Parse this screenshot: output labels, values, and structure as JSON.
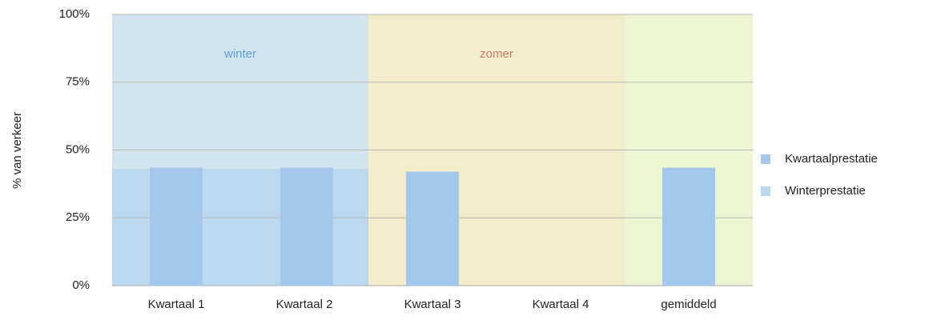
{
  "chart_data": {
    "type": "bar",
    "y_label": "% van verkeer",
    "categories": [
      "Kwartaal 1",
      "Kwartaal 2",
      "Kwartaal 3",
      "Kwartaal 4",
      "gemiddeld"
    ],
    "series": [
      {
        "name": "Kwartaalprestatie",
        "color": "#a3c8ec",
        "values": [
          43.5,
          43.5,
          42,
          null,
          43.5
        ]
      },
      {
        "name": "Winterprestatie",
        "color": "#bcd8ee",
        "values": [
          43,
          43,
          null,
          null,
          null
        ]
      }
    ],
    "regions": [
      {
        "label": "winter",
        "from": 0,
        "to": 1,
        "color": "#d3e4ee",
        "label_color": "#5aa0dc"
      },
      {
        "label": "zomer",
        "from": 2,
        "to": 3,
        "color": "#f3ecca",
        "label_color": "#c4806e"
      },
      {
        "from": 4,
        "to": 4,
        "color": "#eef5d5"
      }
    ],
    "ylim": [
      0,
      100
    ],
    "yticks": [
      {
        "value": 0,
        "label": "0%"
      },
      {
        "value": 25,
        "label": "25%"
      },
      {
        "value": 50,
        "label": "50%"
      },
      {
        "value": 75,
        "label": "75%"
      },
      {
        "value": 100,
        "label": "100%"
      }
    ],
    "grid": true,
    "legend": "right"
  }
}
